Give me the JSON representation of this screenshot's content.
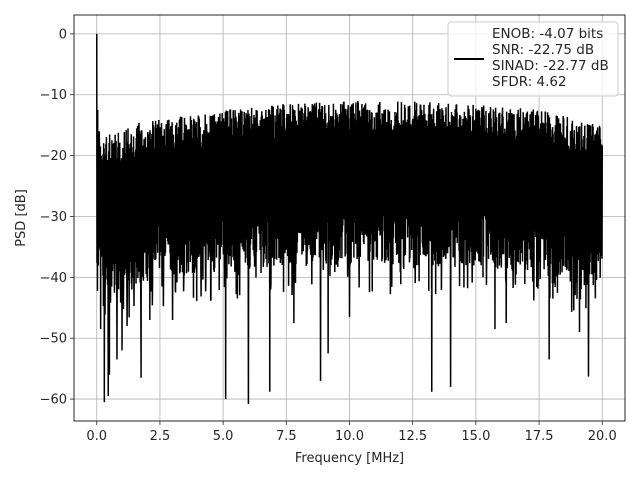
{
  "chart_data": {
    "type": "line",
    "title": "",
    "xlabel": "Frequency [MHz]",
    "ylabel": "PSD [dB]",
    "xlim": [
      -0.9,
      20.9
    ],
    "ylim": [
      -63.6,
      3.1
    ],
    "xticks": [
      0.0,
      2.5,
      5.0,
      7.5,
      10.0,
      12.5,
      15.0,
      17.5,
      20.0
    ],
    "xtick_labels": [
      "0.0",
      "2.5",
      "5.0",
      "7.5",
      "10.0",
      "12.5",
      "15.0",
      "17.5",
      "20.0"
    ],
    "yticks": [
      0,
      -10,
      -20,
      -30,
      -40,
      -50,
      -60
    ],
    "ytick_labels": [
      "0",
      "−10",
      "−20",
      "−30",
      "−40",
      "−50",
      "−60"
    ],
    "grid": true,
    "legend_position": "top-right",
    "legend_entries": [
      "ENOB: -4.07 bits",
      "SNR: -22.75 dB",
      "SINAD: -22.77 dB",
      "SFDR: 4.62"
    ],
    "series": [
      {
        "color": "#000000",
        "envelope_x": [
          0.0,
          1.0,
          2.5,
          5.0,
          7.5,
          10.0,
          12.5,
          15.0,
          17.5,
          20.0
        ],
        "envelope_upper": [
          -18,
          -15,
          -14,
          -12.5,
          -11.5,
          -11,
          -11,
          -11.5,
          -12.5,
          -15
        ],
        "envelope_lower": [
          -44,
          -42,
          -40,
          -39,
          -38,
          -38,
          -38,
          -38.5,
          -39.5,
          -42
        ],
        "peaks": [
          {
            "x": 0.0,
            "y": 0
          },
          {
            "x": 0.04,
            "y": -12.5
          },
          {
            "x": 0.1,
            "y": -16
          }
        ],
        "dips": [
          {
            "x": 0.15,
            "y": -48.5
          },
          {
            "x": 0.3,
            "y": -60.5
          },
          {
            "x": 0.45,
            "y": -59.5
          },
          {
            "x": 0.5,
            "y": -56
          },
          {
            "x": 0.8,
            "y": -53.5
          },
          {
            "x": 1.0,
            "y": -52
          },
          {
            "x": 1.2,
            "y": -48
          },
          {
            "x": 1.75,
            "y": -56.5
          },
          {
            "x": 2.1,
            "y": -47
          },
          {
            "x": 3.0,
            "y": -47
          },
          {
            "x": 5.1,
            "y": -60
          },
          {
            "x": 6.0,
            "y": -60.8
          },
          {
            "x": 6.85,
            "y": -58.8
          },
          {
            "x": 7.8,
            "y": -47.5
          },
          {
            "x": 8.85,
            "y": -57
          },
          {
            "x": 9.15,
            "y": -52.5
          },
          {
            "x": 10.0,
            "y": -46.5
          },
          {
            "x": 13.25,
            "y": -58.8
          },
          {
            "x": 14.0,
            "y": -58
          },
          {
            "x": 15.75,
            "y": -48.5
          },
          {
            "x": 16.2,
            "y": -47.5
          },
          {
            "x": 17.9,
            "y": -53.5
          },
          {
            "x": 19.1,
            "y": -49
          },
          {
            "x": 19.45,
            "y": -56.3
          }
        ]
      }
    ]
  }
}
